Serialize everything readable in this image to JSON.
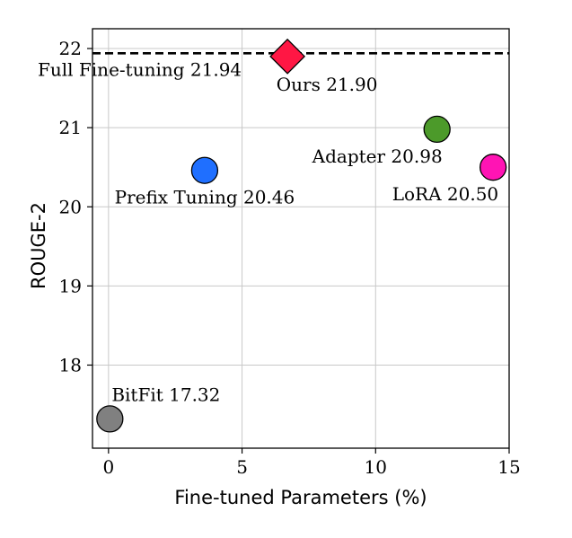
{
  "chart_data": {
    "type": "scatter",
    "title": "",
    "xlabel": "Fine-tuned Parameters (%)",
    "ylabel": "ROUGE-2",
    "xlim": [
      -0.6,
      15
    ],
    "ylim": [
      16.95,
      22.25
    ],
    "xticks": [
      0,
      5,
      10,
      15
    ],
    "yticks": [
      18,
      19,
      20,
      21,
      22
    ],
    "grid": true,
    "reference_line": {
      "label": "Full Fine-tuning 21.94",
      "y": 21.94,
      "style": "dashed",
      "color": "#000000"
    },
    "points": [
      {
        "name": "BitFit",
        "x": 0.05,
        "y": 17.32,
        "label": "BitFit 17.32",
        "color": "#808080",
        "marker": "circle",
        "label_pos": "above-right"
      },
      {
        "name": "Prefix Tuning",
        "x": 3.6,
        "y": 20.46,
        "label": "Prefix Tuning 20.46",
        "color": "#1f6fff",
        "marker": "circle",
        "label_pos": "below"
      },
      {
        "name": "Ours",
        "x": 6.7,
        "y": 21.9,
        "label": "Ours 21.90",
        "color": "#ff1744",
        "marker": "diamond",
        "label_pos": "below"
      },
      {
        "name": "Adapter",
        "x": 12.3,
        "y": 20.98,
        "label": "Adapter 20.98",
        "color": "#4c9a2a",
        "marker": "circle",
        "label_pos": "below-left"
      },
      {
        "name": "LoRA",
        "x": 14.4,
        "y": 20.5,
        "label": "LoRA 20.50",
        "color": "#ff14b4",
        "marker": "circle",
        "label_pos": "below-left"
      }
    ]
  }
}
